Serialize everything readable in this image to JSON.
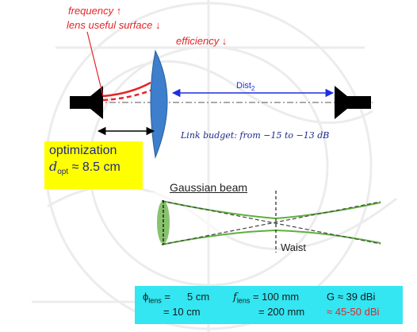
{
  "annotations": {
    "frequency": "frequency ↑",
    "lens_surface": "lens useful surface ↓",
    "efficiency": "efficiency ↓"
  },
  "distance_label": {
    "main": "Dist",
    "sub": "2"
  },
  "link_budget": "Link budget: from −15 to −13 dB",
  "optimization": {
    "title": "optimization",
    "d_symbol": "d",
    "d_sub": "opt",
    "d_value": " ≈ 8.5 cm"
  },
  "gaussian": {
    "title": "Gaussian beam",
    "waist": "Waist"
  },
  "params": {
    "phi": "ϕ",
    "phi_sub": "lens",
    "phi_eq": " =",
    "phi_val1": "5 cm",
    "phi_val2": "= 10 cm",
    "f": "f",
    "f_sub": "lens",
    "f_val1": " = 100 mm",
    "f_val2": "= 200 mm",
    "g1": "G ≈ 39 dBi",
    "g2": "≈ 45-50 dBi"
  },
  "colors": {
    "lens": "#3d7fcc",
    "horn": "#000000",
    "annotation_red": "#e3262b",
    "distance_arrow": "#1e2fe0",
    "opt_box": "#ffff00",
    "param_box": "#33e6f2",
    "beam": "#5faf3c"
  }
}
